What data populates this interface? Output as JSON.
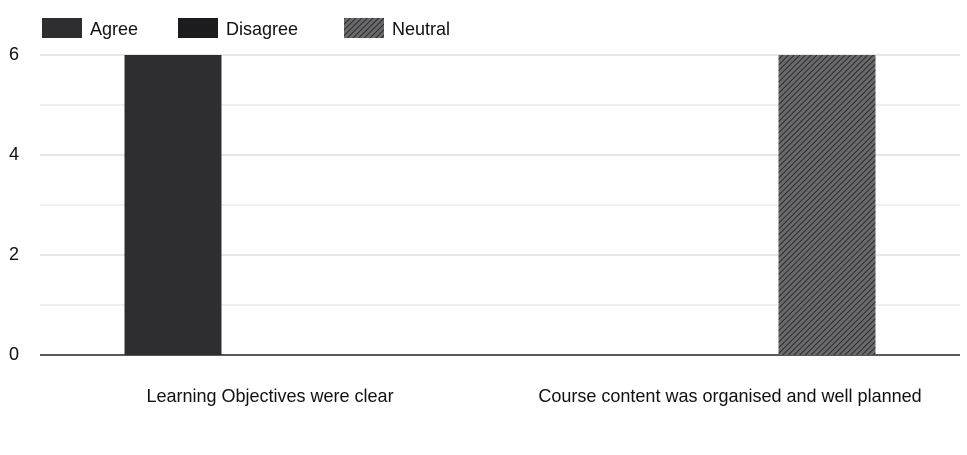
{
  "chart_data": {
    "type": "bar",
    "categories": [
      "Learning Objectives were clear",
      "Course content was organised and well planned"
    ],
    "series": [
      {
        "name": "Agree",
        "color": "#2e2e30",
        "values": [
          6,
          0
        ]
      },
      {
        "name": "Disagree",
        "color": "#1c1c1e",
        "values": [
          0,
          0
        ]
      },
      {
        "name": "Neutral",
        "color": "#4a4a4c",
        "pattern": "hatch",
        "values": [
          0,
          6
        ]
      }
    ],
    "ylim": [
      0,
      6
    ],
    "yticks": [
      0,
      2,
      4,
      6
    ],
    "minor_yticks": [
      1,
      3,
      5
    ],
    "grid": true,
    "legend": "top-left"
  }
}
